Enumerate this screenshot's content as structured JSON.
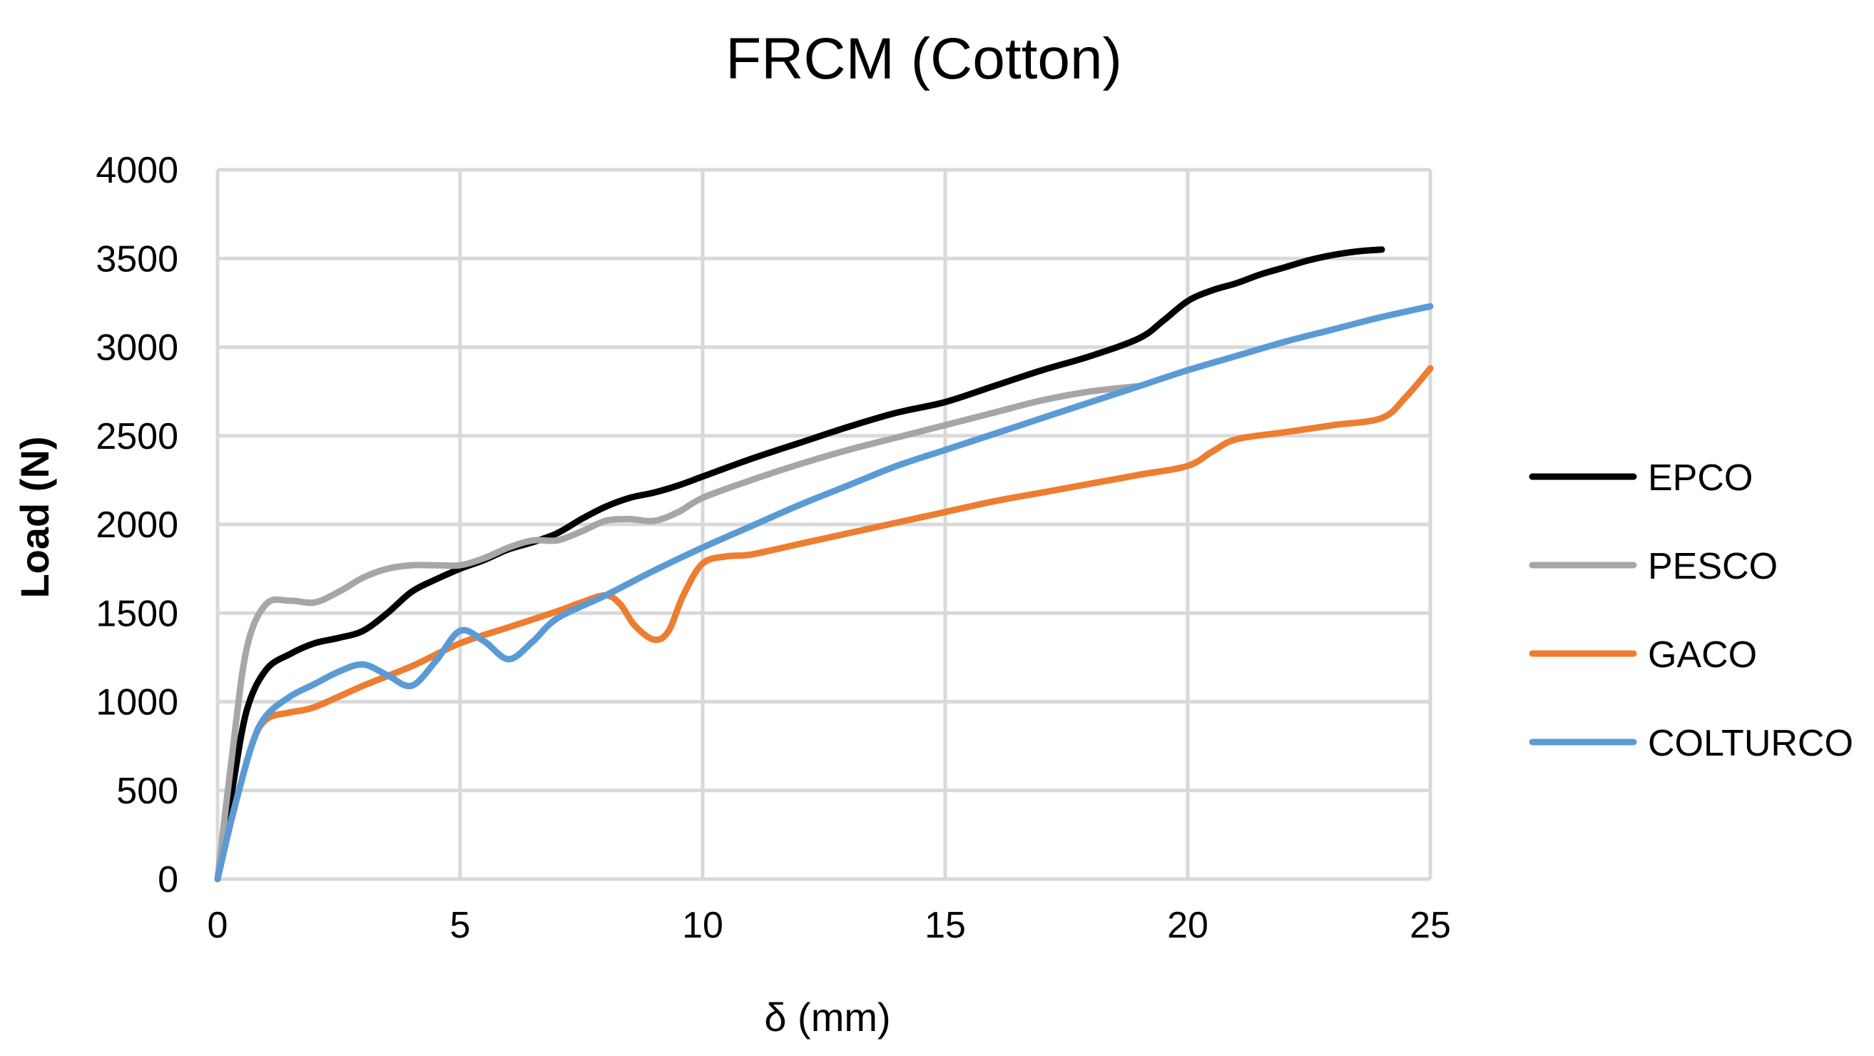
{
  "chart_data": {
    "type": "line",
    "title": "FRCM (Cotton)",
    "xlabel": "δ (mm)",
    "ylabel": "Load (N)",
    "xlim": [
      0,
      25
    ],
    "ylim": [
      0,
      4000
    ],
    "xticks": [
      0,
      5,
      10,
      15,
      20,
      25
    ],
    "yticks": [
      0,
      500,
      1000,
      1500,
      2000,
      2500,
      3000,
      3500,
      4000
    ],
    "grid": true,
    "legend_position": "right",
    "series": [
      {
        "name": "EPCO",
        "color": "#000000",
        "points": [
          [
            0,
            0
          ],
          [
            0.3,
            500
          ],
          [
            0.6,
            950
          ],
          [
            1,
            1180
          ],
          [
            1.5,
            1270
          ],
          [
            2,
            1330
          ],
          [
            2.5,
            1360
          ],
          [
            3,
            1400
          ],
          [
            3.5,
            1500
          ],
          [
            4,
            1620
          ],
          [
            4.5,
            1690
          ],
          [
            5,
            1750
          ],
          [
            5.5,
            1800
          ],
          [
            6,
            1860
          ],
          [
            6.5,
            1900
          ],
          [
            7,
            1950
          ],
          [
            7.5,
            2030
          ],
          [
            8,
            2100
          ],
          [
            8.5,
            2150
          ],
          [
            9,
            2180
          ],
          [
            9.5,
            2220
          ],
          [
            10,
            2270
          ],
          [
            11,
            2370
          ],
          [
            12,
            2460
          ],
          [
            13,
            2550
          ],
          [
            14,
            2630
          ],
          [
            15,
            2690
          ],
          [
            16,
            2780
          ],
          [
            17,
            2870
          ],
          [
            18,
            2950
          ],
          [
            19,
            3050
          ],
          [
            19.5,
            3150
          ],
          [
            20,
            3260
          ],
          [
            20.5,
            3320
          ],
          [
            21,
            3360
          ],
          [
            21.5,
            3410
          ],
          [
            22,
            3450
          ],
          [
            22.5,
            3490
          ],
          [
            23,
            3520
          ],
          [
            23.5,
            3540
          ],
          [
            24,
            3550
          ]
        ]
      },
      {
        "name": "PESCO",
        "color": "#a6a6a6",
        "points": [
          [
            0,
            0
          ],
          [
            0.3,
            700
          ],
          [
            0.6,
            1300
          ],
          [
            1,
            1550
          ],
          [
            1.5,
            1570
          ],
          [
            2,
            1560
          ],
          [
            2.5,
            1620
          ],
          [
            3,
            1700
          ],
          [
            3.5,
            1750
          ],
          [
            4,
            1770
          ],
          [
            4.5,
            1770
          ],
          [
            5,
            1770
          ],
          [
            5.5,
            1810
          ],
          [
            6,
            1870
          ],
          [
            6.5,
            1910
          ],
          [
            7,
            1910
          ],
          [
            7.5,
            1960
          ],
          [
            8,
            2020
          ],
          [
            8.5,
            2030
          ],
          [
            9,
            2020
          ],
          [
            9.5,
            2070
          ],
          [
            10,
            2150
          ],
          [
            11,
            2250
          ],
          [
            12,
            2340
          ],
          [
            13,
            2420
          ],
          [
            14,
            2490
          ],
          [
            15,
            2560
          ],
          [
            16,
            2630
          ],
          [
            17,
            2700
          ],
          [
            18,
            2750
          ],
          [
            19,
            2780
          ]
        ]
      },
      {
        "name": "GACO",
        "color": "#ed7d31",
        "points": [
          [
            0,
            0
          ],
          [
            0.3,
            350
          ],
          [
            0.7,
            750
          ],
          [
            1,
            900
          ],
          [
            1.5,
            940
          ],
          [
            2,
            970
          ],
          [
            3,
            1090
          ],
          [
            4,
            1200
          ],
          [
            5,
            1330
          ],
          [
            6,
            1420
          ],
          [
            7,
            1510
          ],
          [
            7.5,
            1560
          ],
          [
            8,
            1600
          ],
          [
            8.3,
            1550
          ],
          [
            8.6,
            1430
          ],
          [
            9,
            1350
          ],
          [
            9.3,
            1400
          ],
          [
            9.6,
            1600
          ],
          [
            10,
            1780
          ],
          [
            10.5,
            1820
          ],
          [
            11,
            1830
          ],
          [
            12,
            1890
          ],
          [
            13,
            1950
          ],
          [
            14,
            2010
          ],
          [
            15,
            2070
          ],
          [
            16,
            2130
          ],
          [
            17,
            2180
          ],
          [
            18,
            2230
          ],
          [
            19,
            2280
          ],
          [
            20,
            2330
          ],
          [
            20.5,
            2410
          ],
          [
            21,
            2480
          ],
          [
            22,
            2520
          ],
          [
            23,
            2560
          ],
          [
            24,
            2600
          ],
          [
            24.5,
            2720
          ],
          [
            25,
            2880
          ]
        ]
      },
      {
        "name": "COLTURCO",
        "color": "#5b9bd5",
        "points": [
          [
            0,
            0
          ],
          [
            0.3,
            350
          ],
          [
            0.7,
            750
          ],
          [
            1,
            920
          ],
          [
            1.5,
            1030
          ],
          [
            2,
            1100
          ],
          [
            2.5,
            1170
          ],
          [
            3,
            1210
          ],
          [
            3.5,
            1150
          ],
          [
            4,
            1090
          ],
          [
            4.5,
            1230
          ],
          [
            5,
            1400
          ],
          [
            5.5,
            1340
          ],
          [
            6,
            1240
          ],
          [
            6.5,
            1340
          ],
          [
            7,
            1470
          ],
          [
            8,
            1600
          ],
          [
            9,
            1740
          ],
          [
            10,
            1870
          ],
          [
            11,
            1990
          ],
          [
            12,
            2110
          ],
          [
            13,
            2220
          ],
          [
            14,
            2330
          ],
          [
            15,
            2420
          ],
          [
            16,
            2510
          ],
          [
            17,
            2600
          ],
          [
            18,
            2690
          ],
          [
            19,
            2780
          ],
          [
            20,
            2870
          ],
          [
            21,
            2950
          ],
          [
            22,
            3030
          ],
          [
            23,
            3100
          ],
          [
            24,
            3170
          ],
          [
            25,
            3230
          ]
        ]
      }
    ]
  }
}
